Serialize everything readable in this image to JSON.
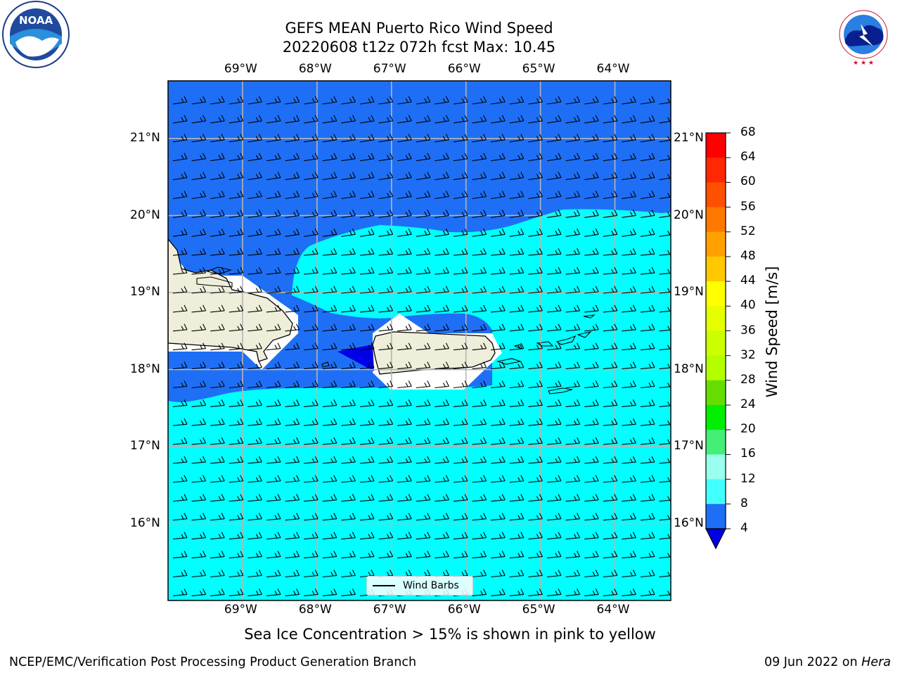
{
  "title": {
    "line1": "GEFS MEAN Puerto Rico Wind Speed",
    "line2": "20220608 t12z 072h fcst   Max: 10.45"
  },
  "logos": {
    "left": "NOAA",
    "left_ring_text": "NATIONAL OCEANIC AND ATMOSPHERIC ADMINISTRATION · U.S. DEPARTMENT OF COMMERCE",
    "right_ring_text": "NATIONAL WEATHER SERVICE"
  },
  "map": {
    "lon_labels": [
      "69°W",
      "68°W",
      "67°W",
      "66°W",
      "65°W",
      "64°W"
    ],
    "lat_labels": [
      "21°N",
      "20°N",
      "19°N",
      "18°N",
      "17°N",
      "16°N"
    ],
    "lon_range": [
      -70.0,
      -63.25
    ],
    "lat_range": [
      15.0,
      21.75
    ],
    "gridlines": true,
    "barb_direction": "from east",
    "fill_colors": {
      "4-8": "#1e6ff5",
      "8-12": "#00ffff",
      "below-4": "#0000e6",
      "land": "#efeedb"
    }
  },
  "legend": {
    "label": "Wind Barbs"
  },
  "colorbar": {
    "label": "Wind Speed [m/s]",
    "ticks": [
      "68",
      "64",
      "60",
      "56",
      "52",
      "48",
      "44",
      "40",
      "36",
      "32",
      "28",
      "24",
      "20",
      "16",
      "12",
      "8",
      "4"
    ],
    "colors": [
      "#ff0000",
      "#ff2800",
      "#ff5000",
      "#ff7800",
      "#ffa000",
      "#ffc800",
      "#ffff00",
      "#e6ff00",
      "#ccff00",
      "#b3ff00",
      "#66dd00",
      "#00ee00",
      "#44ee77",
      "#99ffee",
      "#44ffff",
      "#00ffff",
      "#1e6ff5"
    ],
    "extend_color": "#0000e6"
  },
  "footer": {
    "note": "Sea Ice Concentration > 15% is shown in pink to yellow",
    "credit_left": "NCEP/EMC/Verification Post Processing Product Generation Branch",
    "credit_date": "09 Jun 2022 on ",
    "credit_machine": "Hera"
  }
}
